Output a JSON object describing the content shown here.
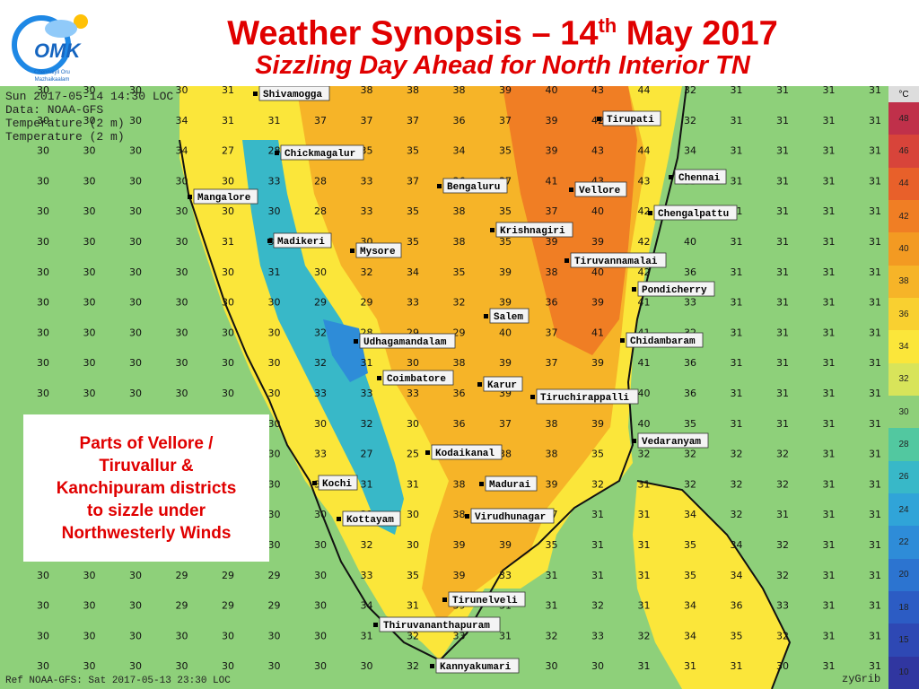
{
  "header": {
    "title_pre": "Weather Synopsis – 14",
    "title_sup": "th",
    "title_post": " May 2017",
    "subtitle": "Sizzling Day Ahead for North Interior TN"
  },
  "logo": {
    "text": "OMK",
    "caption": "Chennaiyil Oru Mazhaikaalam"
  },
  "map_info": {
    "line1": "Sun 2017-05-14 14:30 LOC",
    "line2": "Data: NOAA-GFS",
    "line3": "Temperature (2 m)",
    "line4": "Temperature (2 m)",
    "ref": "Ref NOAA-GFS: Sat 2017-05-13 23:30 LOC",
    "credit": "zyGrib"
  },
  "callout": {
    "lines": [
      "Parts of Vellore /",
      "Tiruvallur &",
      "Kanchipuram districts",
      "to sizzle under",
      "Northwesterly Winds"
    ]
  },
  "legend": {
    "unit": "°C",
    "steps": [
      {
        "label": "48",
        "color": "#c0304a"
      },
      {
        "label": "46",
        "color": "#d8443a"
      },
      {
        "label": "44",
        "color": "#e8602a"
      },
      {
        "label": "42",
        "color": "#f07e24"
      },
      {
        "label": "40",
        "color": "#f39a22"
      },
      {
        "label": "38",
        "color": "#f6b428"
      },
      {
        "label": "36",
        "color": "#f9d030"
      },
      {
        "label": "34",
        "color": "#fbe63a"
      },
      {
        "label": "32",
        "color": "#d8e45a"
      },
      {
        "label": "30",
        "color": "#8ed07a"
      },
      {
        "label": "28",
        "color": "#52c8a0"
      },
      {
        "label": "26",
        "color": "#38b8c8"
      },
      {
        "label": "24",
        "color": "#30a4d8"
      },
      {
        "label": "22",
        "color": "#2e8cd8"
      },
      {
        "label": "20",
        "color": "#2c74d0"
      },
      {
        "label": "18",
        "color": "#2c5cc4"
      },
      {
        "label": "15",
        "color": "#2e48b4"
      },
      {
        "label": "10",
        "color": "#3036a0"
      }
    ]
  },
  "cities": [
    {
      "name": "Shivamogga"
    },
    {
      "name": "Tirupati"
    },
    {
      "name": "Chickmagalur"
    },
    {
      "name": "Chennai"
    },
    {
      "name": "Mangalore"
    },
    {
      "name": "Bengaluru"
    },
    {
      "name": "Vellore"
    },
    {
      "name": "Chengalpattu"
    },
    {
      "name": "Krishnagiri"
    },
    {
      "name": "Madikeri"
    },
    {
      "name": "Mysore"
    },
    {
      "name": "Tiruvannamalai"
    },
    {
      "name": "Pondicherry"
    },
    {
      "name": "Salem"
    },
    {
      "name": "Udhagamandalam"
    },
    {
      "name": "Chidambaram"
    },
    {
      "name": "Coimbatore"
    },
    {
      "name": "Karur"
    },
    {
      "name": "Tiruchirappalli"
    },
    {
      "name": "Vedaranyam"
    },
    {
      "name": "Kodaikanal"
    },
    {
      "name": "Kochi"
    },
    {
      "name": "Madurai"
    },
    {
      "name": "Kottayam"
    },
    {
      "name": "Virudhunagar"
    },
    {
      "name": "Tirunelveli"
    },
    {
      "name": "Thiruvananthapuram"
    },
    {
      "name": "Kannyakumari"
    }
  ],
  "grid_values": [
    [
      "30",
      "30",
      "30",
      "30",
      "31",
      "31",
      "31",
      "38",
      "38",
      "38",
      "39",
      "40",
      "43",
      "44",
      "32",
      "31",
      "31",
      "31",
      "31"
    ],
    [
      "30",
      "30",
      "30",
      "34",
      "31",
      "31",
      "37",
      "37",
      "37",
      "36",
      "37",
      "39",
      "42",
      "44",
      "32",
      "31",
      "31",
      "31",
      "31"
    ],
    [
      "30",
      "30",
      "30",
      "34",
      "27",
      "28",
      "33",
      "35",
      "35",
      "34",
      "35",
      "39",
      "43",
      "44",
      "34",
      "31",
      "31",
      "31",
      "31"
    ],
    [
      "30",
      "30",
      "30",
      "30",
      "30",
      "33",
      "28",
      "33",
      "37",
      "36",
      "37",
      "41",
      "43",
      "43",
      "33",
      "31",
      "31",
      "31",
      "31"
    ],
    [
      "30",
      "30",
      "30",
      "30",
      "30",
      "30",
      "28",
      "33",
      "35",
      "38",
      "35",
      "37",
      "40",
      "42",
      "42",
      "31",
      "31",
      "31",
      "31"
    ],
    [
      "30",
      "30",
      "30",
      "30",
      "31",
      "31",
      "27",
      "30",
      "35",
      "38",
      "35",
      "39",
      "39",
      "42",
      "40",
      "31",
      "31",
      "31",
      "31"
    ],
    [
      "30",
      "30",
      "30",
      "30",
      "30",
      "31",
      "30",
      "32",
      "34",
      "35",
      "39",
      "38",
      "40",
      "42",
      "36",
      "31",
      "31",
      "31",
      "31"
    ],
    [
      "30",
      "30",
      "30",
      "30",
      "30",
      "30",
      "29",
      "29",
      "33",
      "32",
      "39",
      "36",
      "39",
      "41",
      "33",
      "31",
      "31",
      "31",
      "31"
    ],
    [
      "30",
      "30",
      "30",
      "30",
      "30",
      "30",
      "32",
      "28",
      "29",
      "29",
      "40",
      "37",
      "41",
      "41",
      "32",
      "31",
      "31",
      "31",
      "31"
    ],
    [
      "30",
      "30",
      "30",
      "30",
      "30",
      "30",
      "32",
      "31",
      "30",
      "38",
      "39",
      "37",
      "39",
      "41",
      "36",
      "31",
      "31",
      "31",
      "31"
    ],
    [
      "30",
      "30",
      "30",
      "30",
      "30",
      "30",
      "33",
      "33",
      "33",
      "36",
      "39",
      "40",
      "39",
      "40",
      "36",
      "31",
      "31",
      "31",
      "31"
    ],
    [
      "30",
      "30",
      "30",
      "30",
      "30",
      "30",
      "30",
      "32",
      "30",
      "36",
      "37",
      "38",
      "39",
      "40",
      "35",
      "31",
      "31",
      "31",
      "31"
    ]
  ],
  "grid_values_lower": [
    [
      "30",
      "30",
      "30",
      "30",
      "30",
      "30",
      "33",
      "27",
      "25",
      "36",
      "38",
      "38",
      "35",
      "32",
      "32",
      "32",
      "32",
      "31",
      "31"
    ],
    [
      "30",
      "30",
      "30",
      "30",
      "30",
      "30",
      "33",
      "31",
      "31",
      "38",
      "39",
      "39",
      "32",
      "31",
      "32",
      "32",
      "32",
      "31",
      "31"
    ],
    [
      "30",
      "30",
      "30",
      "30",
      "30",
      "30",
      "30",
      "31",
      "30",
      "38",
      "38",
      "37",
      "31",
      "31",
      "34",
      "32",
      "31",
      "31",
      "31"
    ],
    [
      "30",
      "30",
      "30",
      "30",
      "30",
      "30",
      "30",
      "32",
      "30",
      "39",
      "39",
      "35",
      "31",
      "31",
      "35",
      "34",
      "32",
      "31",
      "31"
    ],
    [
      "30",
      "30",
      "30",
      "29",
      "29",
      "29",
      "30",
      "33",
      "35",
      "39",
      "33",
      "31",
      "31",
      "31",
      "35",
      "34",
      "32",
      "31",
      "31"
    ],
    [
      "30",
      "30",
      "30",
      "29",
      "29",
      "29",
      "30",
      "34",
      "31",
      "39",
      "31",
      "31",
      "32",
      "31",
      "34",
      "36",
      "33",
      "31",
      "31"
    ],
    [
      "30",
      "30",
      "30",
      "30",
      "30",
      "30",
      "30",
      "31",
      "32",
      "33",
      "31",
      "32",
      "33",
      "32",
      "34",
      "35",
      "32",
      "31",
      "31"
    ],
    [
      "30",
      "30",
      "30",
      "30",
      "30",
      "30",
      "30",
      "30",
      "32",
      "32",
      "31",
      "30",
      "30",
      "31",
      "31",
      "31",
      "30",
      "31",
      "31"
    ]
  ]
}
